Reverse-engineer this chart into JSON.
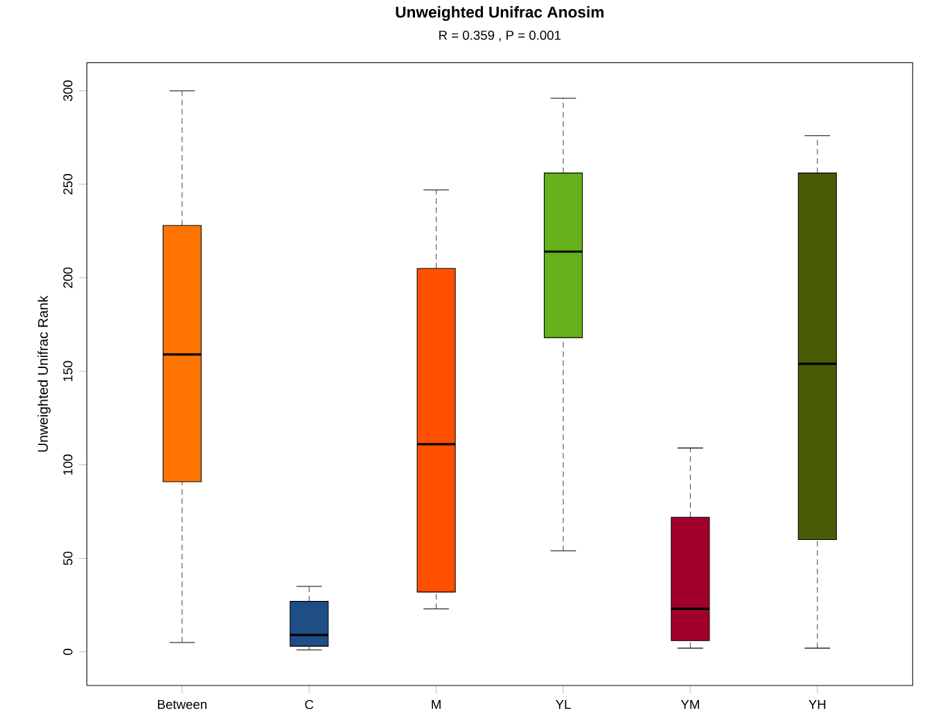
{
  "chart_data": {
    "type": "box",
    "title": "Unweighted Unifrac Anosim",
    "subtitle": "R = 0.359 ,  P = 0.001",
    "ylabel": "Unweighted Unifrac Rank",
    "categories": [
      "Between",
      "C",
      "M",
      "YL",
      "YM",
      "YH"
    ],
    "boxes": [
      {
        "low": 5,
        "q1": 91,
        "median": 159,
        "q3": 228,
        "high": 300
      },
      {
        "low": 1,
        "q1": 3,
        "median": 9,
        "q3": 27,
        "high": 35
      },
      {
        "low": 23,
        "q1": 32,
        "median": 111,
        "q3": 205,
        "high": 247
      },
      {
        "low": 54,
        "q1": 168,
        "median": 214,
        "q3": 256,
        "high": 296
      },
      {
        "low": 2,
        "q1": 6,
        "median": 23,
        "q3": 72,
        "high": 109
      },
      {
        "low": 2,
        "q1": 60,
        "median": 154,
        "q3": 256,
        "high": 276
      }
    ],
    "colors": [
      "#ff7400",
      "#1f4e87",
      "#ff4f00",
      "#66b21a",
      "#a0002b",
      "#4b5c06"
    ],
    "ylim": [
      -18,
      315
    ],
    "yticks": [
      0,
      50,
      100,
      150,
      200,
      250,
      300
    ]
  }
}
